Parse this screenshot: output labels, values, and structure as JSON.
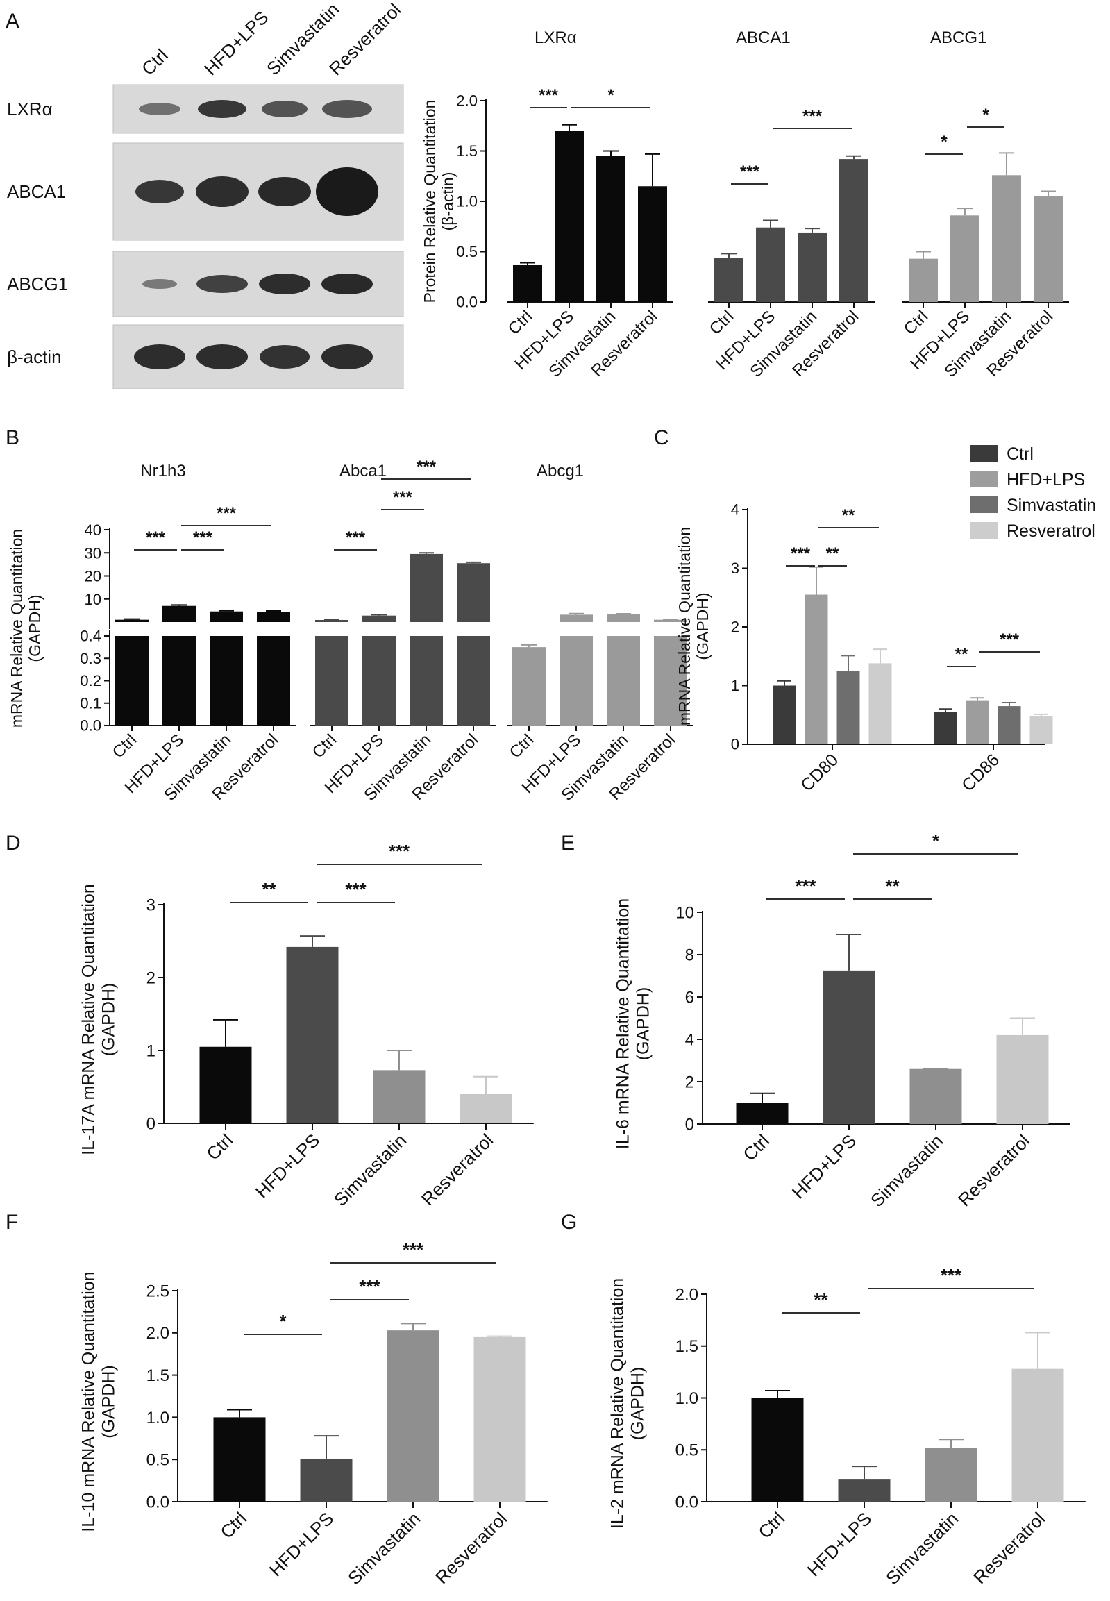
{
  "panel_letters": [
    "A",
    "B",
    "C",
    "D",
    "E",
    "F",
    "G"
  ],
  "blot": {
    "lanes": [
      "Ctrl",
      "HFD+LPS",
      "Simvastatin",
      "Resveratrol"
    ],
    "rows": [
      "LXRα",
      "ABCA1",
      "ABCG1",
      "β-actin"
    ]
  },
  "colors": {
    "black": "#0a0a0a",
    "dark": "#4a4a4a",
    "mid": "#7d7d7d",
    "midlight": "#8c8c8c",
    "light": "#c8c8c8",
    "gray_a": "#9a9a9a"
  },
  "chart_data": [
    {
      "panel": "A",
      "type": "bar",
      "ylabel": "Protein Relative Quantitation\n(β-actin)",
      "ylim": [
        0,
        2.0
      ],
      "yticks": [
        0.0,
        0.5,
        1.0,
        1.5,
        2.0
      ],
      "categories": [
        "Ctrl",
        "HFD+LPS",
        "Simvastatin",
        "Resveratrol"
      ],
      "groups": [
        {
          "name": "LXRα",
          "values": [
            0.37,
            1.7,
            1.45,
            1.15
          ],
          "errors": [
            0.02,
            0.06,
            0.05,
            0.32
          ],
          "sig": [
            {
              "from": 0,
              "to": 1,
              "label": "***"
            },
            {
              "from": 1,
              "to": 3,
              "label": "*"
            }
          ]
        },
        {
          "name": "ABCA1",
          "values": [
            0.44,
            0.74,
            0.69,
            1.42
          ],
          "errors": [
            0.04,
            0.07,
            0.04,
            0.03
          ],
          "sig": [
            {
              "from": 0,
              "to": 1,
              "label": "***"
            },
            {
              "from": 1,
              "to": 3,
              "label": "***"
            }
          ]
        },
        {
          "name": "ABCG1",
          "values": [
            0.43,
            0.86,
            1.26,
            1.05
          ],
          "errors": [
            0.07,
            0.07,
            0.22,
            0.05
          ],
          "sig": [
            {
              "from": 0,
              "to": 1,
              "label": "*"
            },
            {
              "from": 1,
              "to": 2,
              "label": "*"
            }
          ]
        }
      ]
    },
    {
      "panel": "B",
      "type": "bar",
      "ylabel": "mRNA Relative Quantitation\n(GAPDH)",
      "upper_ticks": [
        10,
        20,
        30,
        40
      ],
      "lower_ticks": [
        0.0,
        0.1,
        0.2,
        0.3,
        0.4
      ],
      "categories": [
        "Ctrl",
        "HFD+LPS",
        "Simvastatin",
        "Resveratrol"
      ],
      "groups": [
        {
          "name": "Nr1h3",
          "values": [
            1.0,
            7.0,
            4.6,
            4.5
          ],
          "errors": [
            0.3,
            0.4,
            0.3,
            0.3
          ],
          "sig": [
            {
              "from": 0,
              "to": 1,
              "label": "***"
            },
            {
              "from": 1,
              "to": 2,
              "label": "***"
            },
            {
              "from": 1,
              "to": 3,
              "label": "***"
            }
          ]
        },
        {
          "name": "Abca1",
          "values": [
            0.9,
            2.8,
            29.5,
            25.5
          ],
          "errors": [
            0.2,
            0.4,
            0.5,
            0.4
          ],
          "sig": [
            {
              "from": 0,
              "to": 1,
              "label": "***"
            },
            {
              "from": 1,
              "to": 2,
              "label": "***"
            },
            {
              "from": 1,
              "to": 3,
              "label": "***"
            }
          ]
        },
        {
          "name": "Abcg1",
          "values": [
            0.35,
            3.2,
            3.3,
            1.0
          ],
          "errors": [
            0.01,
            0.5,
            0.3,
            0.2
          ],
          "sig": []
        }
      ]
    },
    {
      "panel": "C",
      "type": "bar",
      "ylabel": "mRNA Relative Quantitation\n(GAPDH)",
      "ylim": [
        0,
        4
      ],
      "yticks": [
        0,
        1,
        2,
        3,
        4
      ],
      "categories": [
        "CD80",
        "CD86"
      ],
      "series": [
        {
          "name": "Ctrl",
          "values": [
            1.0,
            0.55
          ],
          "errors": [
            0.08,
            0.05
          ]
        },
        {
          "name": "HFD+LPS",
          "values": [
            2.55,
            0.75
          ],
          "errors": [
            0.47,
            0.04
          ]
        },
        {
          "name": "Simvastatin",
          "values": [
            1.25,
            0.65
          ],
          "errors": [
            0.26,
            0.06
          ]
        },
        {
          "name": "Resveratrol",
          "values": [
            1.38,
            0.48
          ],
          "errors": [
            0.24,
            0.03
          ]
        }
      ],
      "sig": [
        {
          "cat": 0,
          "from": 0,
          "to": 1,
          "label": "***"
        },
        {
          "cat": 0,
          "from": 1,
          "to": 2,
          "label": "**"
        },
        {
          "cat": 0,
          "from": 1,
          "to": 3,
          "label": "**"
        },
        {
          "cat": 1,
          "from": 0,
          "to": 1,
          "label": "**"
        },
        {
          "cat": 1,
          "from": 1,
          "to": 3,
          "label": "***"
        }
      ]
    },
    {
      "panel": "D",
      "type": "bar",
      "ylabel": "IL-17A mRNA Relative Quantitation\n(GAPDH)",
      "ylim": [
        0,
        3
      ],
      "yticks": [
        0,
        1,
        2,
        3
      ],
      "categories": [
        "Ctrl",
        "HFD+LPS",
        "Simvastatin",
        "Resveratrol"
      ],
      "values": [
        1.05,
        2.42,
        0.73,
        0.4
      ],
      "errors": [
        0.37,
        0.15,
        0.27,
        0.24
      ],
      "sig": [
        {
          "from": 0,
          "to": 1,
          "label": "**"
        },
        {
          "from": 1,
          "to": 2,
          "label": "***"
        },
        {
          "from": 1,
          "to": 3,
          "label": "***"
        }
      ]
    },
    {
      "panel": "E",
      "type": "bar",
      "ylabel": "IL-6 mRNA Relative Quantitation\n(GAPDH)",
      "ylim": [
        0,
        10
      ],
      "yticks": [
        0,
        2,
        4,
        6,
        8,
        10
      ],
      "categories": [
        "Ctrl",
        "HFD+LPS",
        "Simvastatin",
        "Resveratrol"
      ],
      "values": [
        1.0,
        7.25,
        2.6,
        4.2
      ],
      "errors": [
        0.45,
        1.7,
        0.02,
        0.8
      ],
      "sig": [
        {
          "from": 0,
          "to": 1,
          "label": "***"
        },
        {
          "from": 1,
          "to": 2,
          "label": "**"
        },
        {
          "from": 1,
          "to": 3,
          "label": "*"
        }
      ]
    },
    {
      "panel": "F",
      "type": "bar",
      "ylabel": "IL-10 mRNA Relative Quantitation\n(GAPDH)",
      "ylim": [
        0,
        2.5
      ],
      "yticks": [
        0.0,
        0.5,
        1.0,
        1.5,
        2.0,
        2.5
      ],
      "categories": [
        "Ctrl",
        "HFD+LPS",
        "Simvastatin",
        "Resveratrol"
      ],
      "values": [
        1.0,
        0.51,
        2.03,
        1.95
      ],
      "errors": [
        0.09,
        0.27,
        0.08,
        0.01
      ],
      "sig": [
        {
          "from": 0,
          "to": 1,
          "label": "*"
        },
        {
          "from": 1,
          "to": 2,
          "label": "***"
        },
        {
          "from": 1,
          "to": 3,
          "label": "***"
        }
      ]
    },
    {
      "panel": "G",
      "type": "bar",
      "ylabel": "IL-2 mRNA Relative Quantitation\n(GAPDH)",
      "ylim": [
        0,
        2.0
      ],
      "yticks": [
        0.0,
        0.5,
        1.0,
        1.5,
        2.0
      ],
      "categories": [
        "Ctrl",
        "HFD+LPS",
        "Simvastatin",
        "Resveratrol"
      ],
      "values": [
        1.0,
        0.22,
        0.52,
        1.28
      ],
      "errors": [
        0.07,
        0.12,
        0.08,
        0.35
      ],
      "sig": [
        {
          "from": 0,
          "to": 1,
          "label": "**"
        },
        {
          "from": 1,
          "to": 3,
          "label": "***"
        }
      ]
    }
  ]
}
